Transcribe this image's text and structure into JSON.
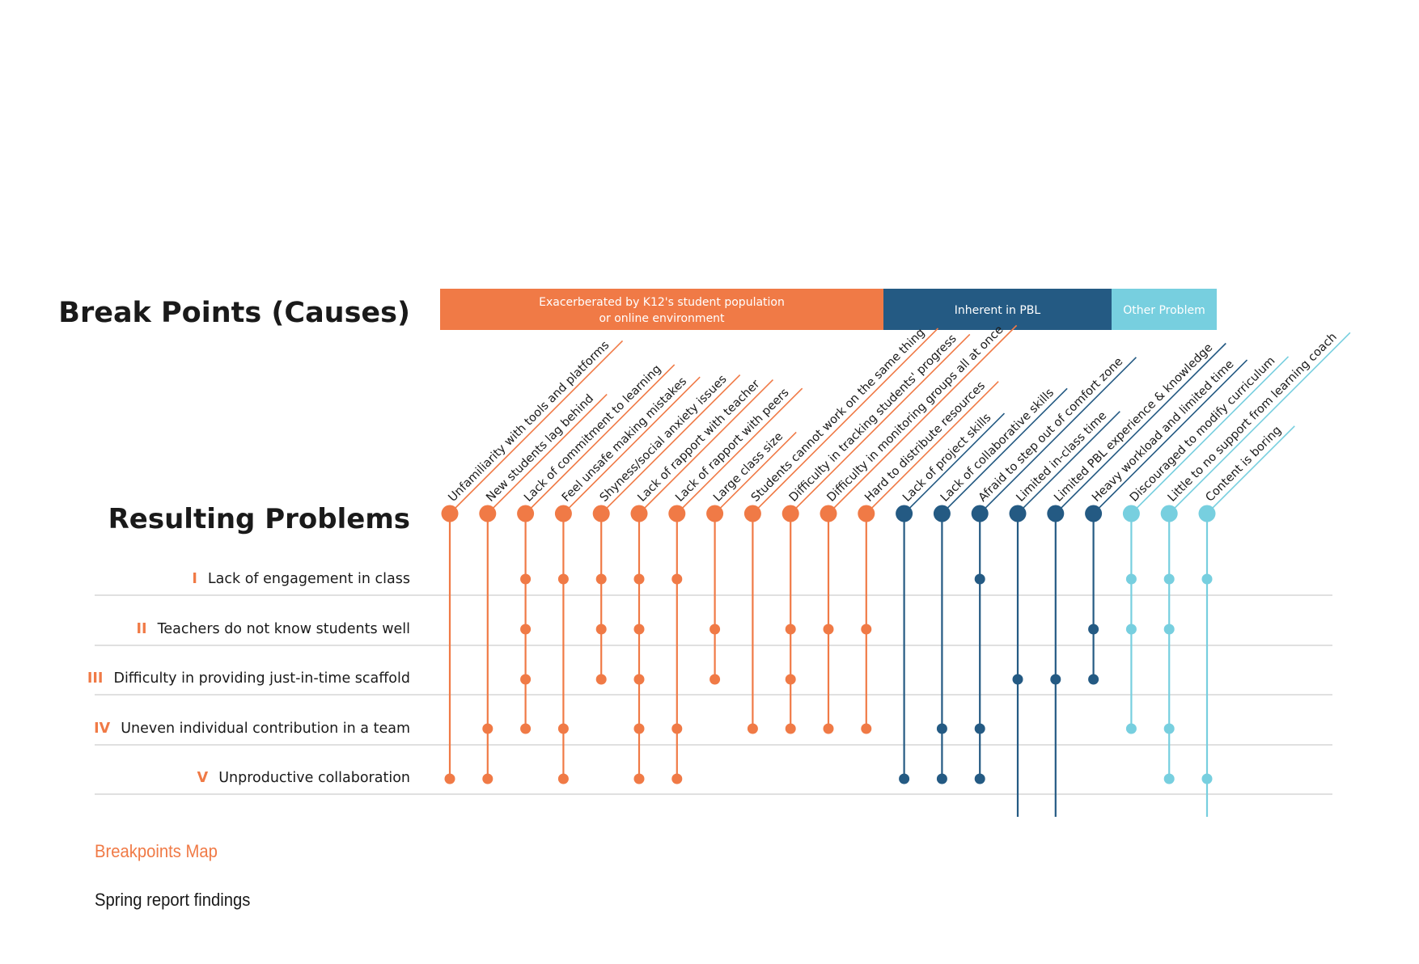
{
  "titles": {
    "causes": "Break Points (Causes)",
    "problems": "Resulting Problems"
  },
  "colors": {
    "orange": "#f07a46",
    "navy": "#245a83",
    "light": "#77cfdf",
    "divider": "#d6d6d6",
    "text": "#1a1a1a"
  },
  "categories": [
    {
      "key": "orange",
      "lines": [
        "Exacerberated by K12's student population",
        "or online environment"
      ],
      "span": [
        0,
        11
      ]
    },
    {
      "key": "navy",
      "lines": [
        "Inherent in PBL"
      ],
      "span": [
        12,
        17
      ]
    },
    {
      "key": "light",
      "lines": [
        "Other Problem"
      ],
      "span": [
        18,
        20
      ]
    }
  ],
  "causes": [
    {
      "label": "Unfamiliarity with tools and platforms",
      "cat": "orange",
      "problems": [
        5
      ]
    },
    {
      "label": "New students lag behind",
      "cat": "orange",
      "problems": [
        4,
        5
      ]
    },
    {
      "label": "Lack of commitment to learning",
      "cat": "orange",
      "problems": [
        1,
        2,
        3,
        4
      ]
    },
    {
      "label": "Feel unsafe making mistakes",
      "cat": "orange",
      "problems": [
        1,
        4,
        5
      ]
    },
    {
      "label": "Shyness/social anxiety issues",
      "cat": "orange",
      "problems": [
        1,
        2,
        3
      ]
    },
    {
      "label": "Lack of rapport with teacher",
      "cat": "orange",
      "problems": [
        1,
        2,
        3,
        4,
        5
      ]
    },
    {
      "label": "Lack of rapport with peers",
      "cat": "orange",
      "problems": [
        1,
        4,
        5
      ]
    },
    {
      "label": "Large class size",
      "cat": "orange",
      "problems": [
        2,
        3
      ]
    },
    {
      "label": "Students cannot work on the same thing",
      "cat": "orange",
      "problems": [
        4
      ]
    },
    {
      "label": "Difficulty in tracking students' progress",
      "cat": "orange",
      "problems": [
        2,
        3,
        4
      ]
    },
    {
      "label": "Difficulty in monitoring groups all at once",
      "cat": "orange",
      "problems": [
        2,
        4
      ]
    },
    {
      "label": "Hard to distribute resources",
      "cat": "orange",
      "problems": [
        2,
        4
      ]
    },
    {
      "label": "Lack of project skills",
      "cat": "navy",
      "problems": [
        5
      ]
    },
    {
      "label": "Lack of collaborative skills",
      "cat": "navy",
      "problems": [
        4,
        5
      ]
    },
    {
      "label": "Afraid to step out of comfort zone",
      "cat": "navy",
      "problems": [
        1,
        4,
        5
      ]
    },
    {
      "label": "Limited in-class time",
      "cat": "navy",
      "problems": [
        3
      ]
    },
    {
      "label": "Limited PBL experience & knowledge",
      "cat": "navy",
      "problems": [
        3
      ]
    },
    {
      "label": "Heavy workload and limited time",
      "cat": "navy",
      "problems": [
        2,
        3
      ]
    },
    {
      "label": "Discouraged to modify curriculum",
      "cat": "light",
      "problems": [
        1,
        2,
        4
      ]
    },
    {
      "label": "Little to no support from learning coach",
      "cat": "light",
      "problems": [
        1,
        2,
        4,
        5
      ]
    },
    {
      "label": "Content is boring",
      "cat": "light",
      "problems": [
        1,
        5
      ]
    }
  ],
  "problems": [
    {
      "num": "I",
      "label": "Lack of engagement in class"
    },
    {
      "num": "II",
      "label": "Teachers do not know students well"
    },
    {
      "num": "III",
      "label": "Difficulty in providing just-in-time scaffold"
    },
    {
      "num": "IV",
      "label": "Uneven individual contribution in a team"
    },
    {
      "num": "V",
      "label": "Unproductive collaboration"
    }
  ],
  "caption": {
    "title": "Breakpoints Map",
    "subtitle": "Spring report findings"
  }
}
